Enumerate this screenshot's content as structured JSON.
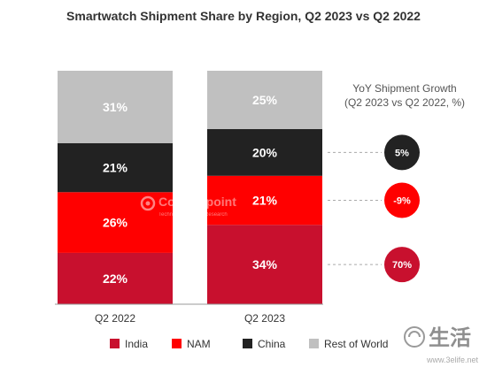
{
  "chart_data": {
    "type": "bar",
    "stacked": true,
    "title": "Smartwatch Shipment Share by Region, Q2 2023 vs Q2 2022",
    "categories": [
      "Q2 2022",
      "Q2 2023"
    ],
    "unit": "%",
    "ylim": [
      0,
      100
    ],
    "grid": false,
    "legend_position": "bottom",
    "series": [
      {
        "name": "India",
        "values": [
          22,
          34
        ],
        "labels": [
          "22%",
          "34%"
        ],
        "color": "#c8102e",
        "label_color": "#ffffff"
      },
      {
        "name": "NAM",
        "values": [
          26,
          21
        ],
        "labels": [
          "26%",
          "21%"
        ],
        "color": "#ff0000",
        "label_color": "#ffffff"
      },
      {
        "name": "China",
        "values": [
          21,
          20
        ],
        "labels": [
          "21%",
          "20%"
        ],
        "color": "#222222",
        "label_color": "#ffffff"
      },
      {
        "name": "Rest of World",
        "values": [
          31,
          25
        ],
        "labels": [
          "31%",
          "25%"
        ],
        "color": "#c0c0c0",
        "label_color": "#ffffff"
      }
    ],
    "yoy_growth": {
      "title_lines": [
        "YoY Shipment Growth",
        "(Q2 2023 vs Q2 2022, %)"
      ],
      "items": [
        {
          "series": "China",
          "value": 5,
          "label": "5%",
          "color": "#222222"
        },
        {
          "series": "NAM",
          "value": -9,
          "label": "-9%",
          "color": "#ff0000"
        },
        {
          "series": "India",
          "value": 70,
          "label": "70%",
          "color": "#c8102e"
        }
      ]
    },
    "watermark": "Counterpoint",
    "watermark_subtitle": "Technology Market Research",
    "corner_logo": "生活",
    "corner_url": "www.3elife.net"
  }
}
